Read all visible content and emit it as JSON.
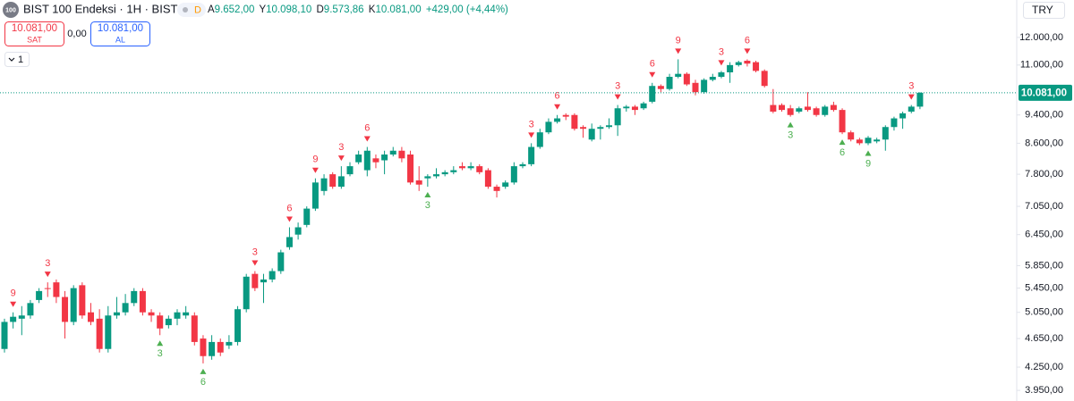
{
  "header": {
    "logo": "100",
    "title": "BIST 100 Endeksi · 1H · BIST",
    "badge": "D",
    "ohlc": [
      {
        "key": "A",
        "value": "9.652,00"
      },
      {
        "key": "Y",
        "value": "10.098,10"
      },
      {
        "key": "D",
        "value": "9.573,86"
      },
      {
        "key": "K",
        "value": "10.081,00"
      }
    ],
    "change": "+429,00 (+4,44%)"
  },
  "trade": {
    "sell_price": "10.081,00",
    "sell": "SAT",
    "spread": "0,00",
    "buy_price": "10.081,00",
    "buy": "AL"
  },
  "indicator_count": "1",
  "currency": "TRY",
  "chart_data": {
    "type": "candlestick",
    "log": true,
    "grid": false,
    "up_color": "#089981",
    "down_color": "#f23645",
    "ylim": [
      3820,
      13500
    ],
    "yticks": [
      {
        "value": 12000,
        "label": "12.000,00"
      },
      {
        "value": 11000,
        "label": "11.000,00"
      },
      {
        "value": 9400,
        "label": "9.400,00"
      },
      {
        "value": 8600,
        "label": "8.600,00"
      },
      {
        "value": 7800,
        "label": "7.800,00"
      },
      {
        "value": 7050,
        "label": "7.050,00"
      },
      {
        "value": 6450,
        "label": "6.450,00"
      },
      {
        "value": 5850,
        "label": "5.850,00"
      },
      {
        "value": 5450,
        "label": "5.450,00"
      },
      {
        "value": 5050,
        "label": "5.050,00"
      },
      {
        "value": 4650,
        "label": "4.650,00"
      },
      {
        "value": 4250,
        "label": "4.250,00"
      },
      {
        "value": 3950,
        "label": "3.950,00"
      }
    ],
    "last_price": {
      "value": 10081,
      "label": "10.081,00"
    },
    "open": [
      4500,
      4900,
      4950,
      5000,
      5250,
      5450,
      5550,
      5300,
      4900,
      5500,
      5050,
      4950,
      4500,
      5000,
      5050,
      5200,
      5400,
      5050,
      5000,
      4850,
      4950,
      5000,
      5000,
      4650,
      4400,
      4600,
      4550,
      4600,
      5100,
      5700,
      5550,
      5600,
      5750,
      6200,
      6450,
      6650,
      7000,
      7400,
      7800,
      7500,
      7800,
      8100,
      7900,
      8200,
      8150,
      8300,
      8400,
      8300,
      7650,
      7700,
      7750,
      7800,
      7850,
      8000,
      7950,
      8000,
      7900,
      7500,
      7500,
      7600,
      8000,
      8050,
      8500,
      8900,
      9200,
      9400,
      9400,
      9050,
      8700,
      9000,
      9050,
      9100,
      9600,
      9650,
      9600,
      9800,
      10300,
      10200,
      10600,
      10700,
      10400,
      10100,
      10500,
      10600,
      10750,
      11000,
      11150,
      11100,
      10800,
      9700,
      9700,
      9600,
      9500,
      9650,
      9600,
      9400,
      9700,
      9550,
      8900,
      8700,
      8600,
      8650,
      8700,
      9050,
      9300,
      9500,
      9650
    ],
    "high": [
      4950,
      5050,
      5150,
      5250,
      5450,
      5550,
      5600,
      5400,
      5500,
      5550,
      5200,
      5100,
      5150,
      5300,
      5350,
      5450,
      5450,
      5100,
      5050,
      5000,
      5100,
      5150,
      5050,
      4700,
      4700,
      4650,
      4700,
      5150,
      5700,
      5750,
      5700,
      5800,
      6150,
      6600,
      6700,
      7050,
      7700,
      7800,
      7850,
      8000,
      8100,
      8400,
      8500,
      8300,
      8400,
      8500,
      8500,
      8400,
      8000,
      7800,
      7950,
      7900,
      8000,
      8100,
      8100,
      8050,
      7950,
      7550,
      7650,
      8100,
      8100,
      8600,
      9000,
      9300,
      9400,
      9450,
      9450,
      9100,
      9150,
      9100,
      9300,
      9700,
      9700,
      9700,
      9800,
      10400,
      10350,
      10700,
      11200,
      10750,
      10500,
      10550,
      10700,
      10800,
      11100,
      11150,
      11200,
      11150,
      10850,
      10200,
      9750,
      9700,
      9650,
      10100,
      9650,
      9700,
      9800,
      9600,
      8950,
      8750,
      8800,
      8750,
      9100,
      9350,
      9500,
      9700,
      10098.1
    ],
    "low": [
      4450,
      4800,
      4700,
      4950,
      5200,
      5300,
      5200,
      4650,
      4850,
      4950,
      4850,
      4450,
      4450,
      4950,
      5000,
      5150,
      5000,
      4900,
      4700,
      4800,
      4850,
      4950,
      4550,
      4300,
      4350,
      4400,
      4500,
      4550,
      5050,
      5400,
      5200,
      5550,
      5700,
      6150,
      6350,
      6600,
      6950,
      7300,
      7450,
      7450,
      7750,
      8050,
      7750,
      7950,
      7800,
      8250,
      8100,
      7550,
      7400,
      7500,
      7700,
      7750,
      7800,
      7900,
      7900,
      7800,
      7450,
      7250,
      7450,
      7550,
      7950,
      8000,
      8450,
      8850,
      9150,
      9250,
      8950,
      8750,
      8650,
      8700,
      9000,
      8800,
      9500,
      9400,
      9550,
      9750,
      10100,
      10150,
      10550,
      10300,
      10000,
      10050,
      10450,
      10550,
      10400,
      10950,
      10950,
      10750,
      10250,
      9450,
      9500,
      9350,
      9450,
      9500,
      9350,
      9350,
      9500,
      8850,
      8650,
      8550,
      8550,
      8600,
      8400,
      8950,
      9000,
      9450,
      9573.86
    ],
    "close": [
      4900,
      4980,
      5000,
      5200,
      5400,
      5440,
      5300,
      4900,
      5450,
      5000,
      4900,
      4500,
      5000,
      5050,
      5200,
      5400,
      5050,
      5000,
      4800,
      4950,
      5050,
      5050,
      4600,
      4400,
      4600,
      4450,
      4600,
      5100,
      5650,
      5450,
      5600,
      5750,
      6100,
      6400,
      6600,
      7000,
      7600,
      7700,
      7500,
      7750,
      8000,
      8300,
      8400,
      8100,
      8300,
      8400,
      8200,
      7600,
      7550,
      7750,
      7800,
      7850,
      7900,
      7950,
      8000,
      7850,
      7500,
      7400,
      7600,
      8000,
      8050,
      8500,
      8900,
      9200,
      9300,
      9350,
      9000,
      9000,
      9000,
      9050,
      9100,
      9600,
      9650,
      9550,
      9750,
      10300,
      10200,
      10600,
      10700,
      10350,
      10100,
      10500,
      10600,
      10750,
      11000,
      11100,
      11050,
      10800,
      10300,
      9500,
      9550,
      9400,
      9600,
      9550,
      9400,
      9650,
      9550,
      8900,
      8700,
      8600,
      8750,
      8700,
      9050,
      9300,
      9450,
      9650,
      10081
    ],
    "signals": [
      {
        "candle": 1,
        "text": "9",
        "side": "above"
      },
      {
        "candle": 5,
        "text": "3",
        "side": "above"
      },
      {
        "candle": 18,
        "text": "3",
        "side": "below"
      },
      {
        "candle": 23,
        "text": "6",
        "side": "below"
      },
      {
        "candle": 29,
        "text": "3",
        "side": "above"
      },
      {
        "candle": 33,
        "text": "6",
        "side": "above"
      },
      {
        "candle": 36,
        "text": "9",
        "side": "above"
      },
      {
        "candle": 39,
        "text": "3",
        "side": "above"
      },
      {
        "candle": 42,
        "text": "6",
        "side": "above"
      },
      {
        "candle": 49,
        "text": "3",
        "side": "below"
      },
      {
        "candle": 61,
        "text": "3",
        "side": "above"
      },
      {
        "candle": 64,
        "text": "6",
        "side": "above"
      },
      {
        "candle": 71,
        "text": "3",
        "side": "above"
      },
      {
        "candle": 75,
        "text": "6",
        "side": "above"
      },
      {
        "candle": 78,
        "text": "9",
        "side": "above"
      },
      {
        "candle": 83,
        "text": "3",
        "side": "above"
      },
      {
        "candle": 86,
        "text": "6",
        "side": "above"
      },
      {
        "candle": 91,
        "text": "3",
        "side": "below"
      },
      {
        "candle": 97,
        "text": "6",
        "side": "below"
      },
      {
        "candle": 100,
        "text": "9",
        "side": "below"
      },
      {
        "candle": 105,
        "text": "3",
        "side": "above"
      }
    ]
  }
}
